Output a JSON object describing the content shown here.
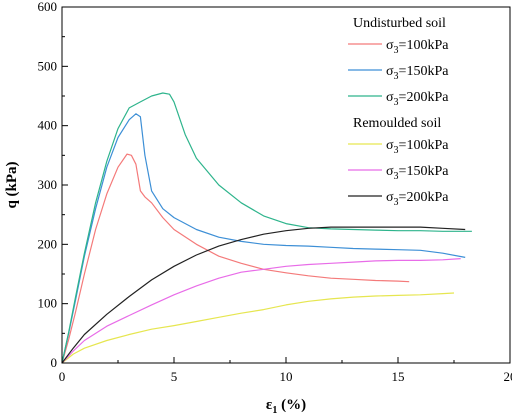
{
  "chart_data": {
    "type": "line",
    "xlabel_main": "ε",
    "xlabel_sub": "1",
    "xlabel_rest": " (%)",
    "ylabel": "q (kPa)",
    "xlim": [
      0,
      20
    ],
    "ylim": [
      0,
      600
    ],
    "xticks": [
      "0",
      "5",
      "10",
      "15",
      "20"
    ],
    "yticks": [
      "0",
      "100",
      "200",
      "300",
      "400",
      "500",
      "600"
    ],
    "legend_position": "top-right",
    "groups": [
      "Undisturbed soil",
      "Remoulded soil"
    ],
    "series": [
      {
        "group": 0,
        "label_main": "σ",
        "label_sub": "3",
        "label_rest": "=100kPa",
        "color": "#f47a7a",
        "points": [
          [
            0,
            0
          ],
          [
            0.3,
            40
          ],
          [
            0.6,
            85
          ],
          [
            1,
            150
          ],
          [
            1.5,
            225
          ],
          [
            2,
            285
          ],
          [
            2.5,
            330
          ],
          [
            2.9,
            352
          ],
          [
            3.1,
            350
          ],
          [
            3.3,
            335
          ],
          [
            3.5,
            290
          ],
          [
            3.7,
            280
          ],
          [
            4,
            270
          ],
          [
            4.5,
            245
          ],
          [
            5,
            225
          ],
          [
            6,
            200
          ],
          [
            7,
            180
          ],
          [
            8,
            168
          ],
          [
            9,
            158
          ],
          [
            10,
            152
          ],
          [
            11,
            147
          ],
          [
            12,
            143
          ],
          [
            13,
            141
          ],
          [
            14,
            139
          ],
          [
            15,
            138
          ],
          [
            15.5,
            137
          ]
        ]
      },
      {
        "group": 0,
        "label_main": "σ",
        "label_sub": "3",
        "label_rest": "=150kPa",
        "color": "#3d8fd6",
        "points": [
          [
            0,
            0
          ],
          [
            0.3,
            50
          ],
          [
            0.6,
            105
          ],
          [
            1,
            180
          ],
          [
            1.5,
            260
          ],
          [
            2,
            330
          ],
          [
            2.5,
            380
          ],
          [
            3,
            410
          ],
          [
            3.3,
            420
          ],
          [
            3.5,
            415
          ],
          [
            3.7,
            350
          ],
          [
            4,
            290
          ],
          [
            4.5,
            260
          ],
          [
            5,
            245
          ],
          [
            6,
            225
          ],
          [
            7,
            212
          ],
          [
            8,
            205
          ],
          [
            9,
            200
          ],
          [
            10,
            198
          ],
          [
            11,
            197
          ],
          [
            12,
            195
          ],
          [
            13,
            193
          ],
          [
            14,
            192
          ],
          [
            15,
            191
          ],
          [
            16,
            190
          ],
          [
            17,
            185
          ],
          [
            18,
            178
          ]
        ]
      },
      {
        "group": 0,
        "label_main": "σ",
        "label_sub": "3",
        "label_rest": "=200kPa",
        "color": "#2eb48c",
        "points": [
          [
            0,
            0
          ],
          [
            0.3,
            52
          ],
          [
            0.6,
            110
          ],
          [
            1,
            185
          ],
          [
            1.5,
            270
          ],
          [
            2,
            340
          ],
          [
            2.5,
            395
          ],
          [
            3,
            430
          ],
          [
            3.5,
            440
          ],
          [
            4,
            450
          ],
          [
            4.5,
            455
          ],
          [
            4.8,
            453
          ],
          [
            5,
            440
          ],
          [
            5.5,
            385
          ],
          [
            6,
            345
          ],
          [
            7,
            300
          ],
          [
            8,
            270
          ],
          [
            9,
            248
          ],
          [
            10,
            235
          ],
          [
            11,
            228
          ],
          [
            12,
            226
          ],
          [
            13,
            225
          ],
          [
            14,
            224
          ],
          [
            15,
            223
          ],
          [
            16,
            223
          ],
          [
            17,
            222
          ],
          [
            18.3,
            222
          ]
        ]
      },
      {
        "group": 1,
        "label_main": "σ",
        "label_sub": "3",
        "label_rest": "=100kPa",
        "color": "#e6e650",
        "points": [
          [
            0,
            0
          ],
          [
            0.5,
            15
          ],
          [
            1,
            25
          ],
          [
            2,
            38
          ],
          [
            3,
            48
          ],
          [
            4,
            57
          ],
          [
            5,
            63
          ],
          [
            6,
            70
          ],
          [
            7,
            77
          ],
          [
            8,
            84
          ],
          [
            9,
            90
          ],
          [
            10,
            98
          ],
          [
            11,
            104
          ],
          [
            12,
            108
          ],
          [
            13,
            111
          ],
          [
            14,
            113
          ],
          [
            15,
            114
          ],
          [
            16,
            115
          ],
          [
            17,
            117
          ],
          [
            17.5,
            118
          ]
        ]
      },
      {
        "group": 1,
        "label_main": "σ",
        "label_sub": "3",
        "label_rest": "=150kPa",
        "color": "#e86ce8",
        "points": [
          [
            0,
            0
          ],
          [
            0.5,
            20
          ],
          [
            1,
            38
          ],
          [
            2,
            62
          ],
          [
            3,
            80
          ],
          [
            4,
            98
          ],
          [
            5,
            115
          ],
          [
            6,
            130
          ],
          [
            7,
            143
          ],
          [
            8,
            153
          ],
          [
            9,
            158
          ],
          [
            10,
            163
          ],
          [
            11,
            166
          ],
          [
            12,
            168
          ],
          [
            13,
            170
          ],
          [
            14,
            172
          ],
          [
            15,
            173
          ],
          [
            16,
            173
          ],
          [
            17,
            174
          ],
          [
            17.8,
            176
          ]
        ]
      },
      {
        "group": 1,
        "label_main": "σ",
        "label_sub": "3",
        "label_rest": "=200kPa",
        "color": "#222222",
        "points": [
          [
            0,
            0
          ],
          [
            0.5,
            25
          ],
          [
            1,
            48
          ],
          [
            2,
            82
          ],
          [
            3,
            112
          ],
          [
            4,
            140
          ],
          [
            5,
            163
          ],
          [
            6,
            182
          ],
          [
            7,
            197
          ],
          [
            8,
            208
          ],
          [
            9,
            217
          ],
          [
            10,
            223
          ],
          [
            11,
            227
          ],
          [
            12,
            229
          ],
          [
            13,
            229
          ],
          [
            14,
            229
          ],
          [
            15,
            229
          ],
          [
            16,
            229
          ],
          [
            17,
            227
          ],
          [
            18,
            225
          ]
        ]
      }
    ]
  }
}
